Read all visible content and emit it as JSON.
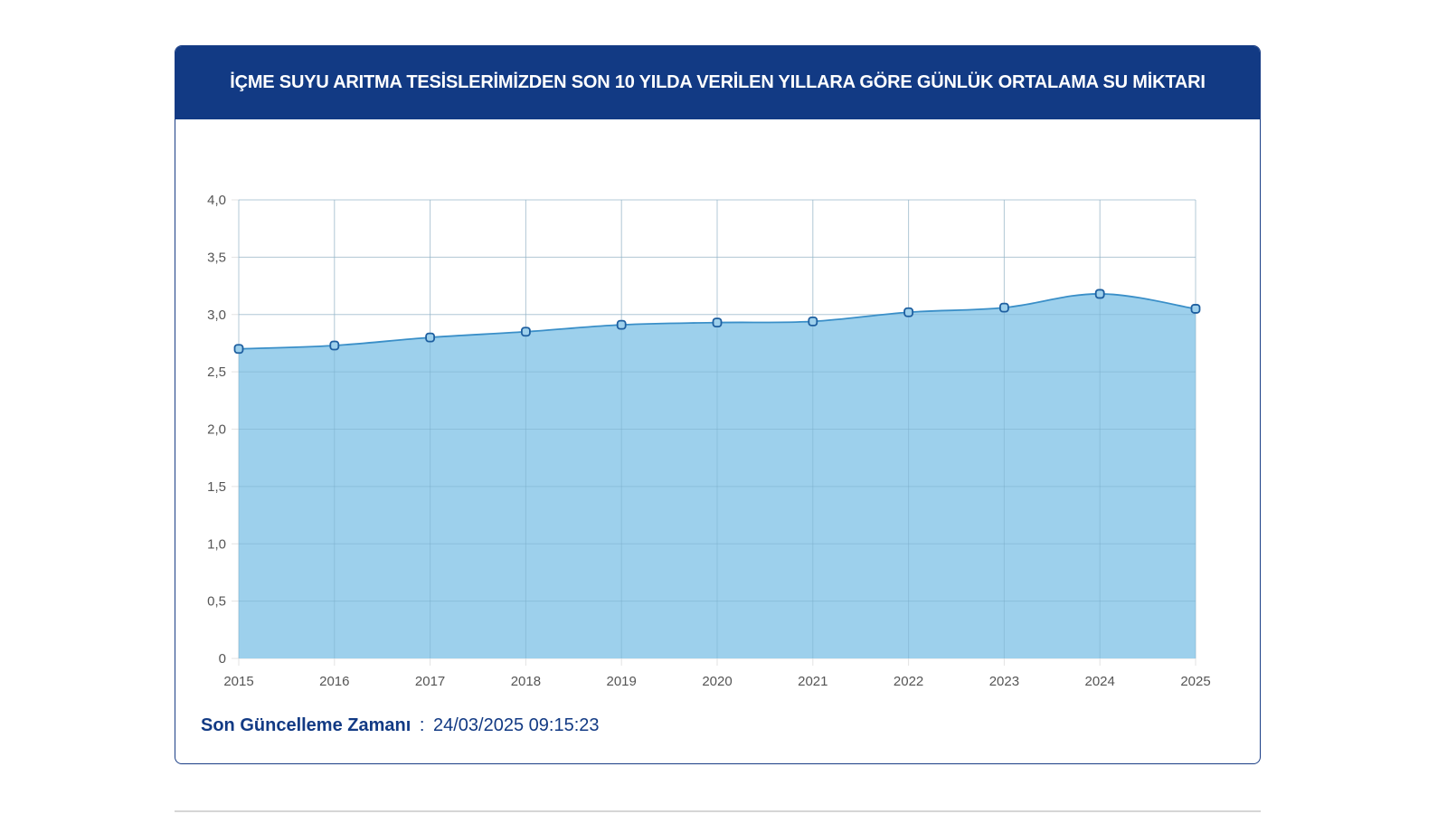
{
  "header": {
    "title": "İÇME SUYU ARITMA TESİSLERİMİZDEN SON 10 YILDA VERİLEN YILLARA GÖRE GÜNLÜK ORTALAMA SU MİKTARI"
  },
  "footer": {
    "label": "Son Güncelleme Zamanı",
    "separator": ":",
    "timestamp": "24/03/2025 09:15:23"
  },
  "colors": {
    "header_bg": "#123a84",
    "area_fill": "#9dd0ec",
    "line": "#3a8fc8",
    "point_stroke": "#1e5fa0"
  },
  "chart_data": {
    "type": "area",
    "x": [
      "2015",
      "2016",
      "2017",
      "2018",
      "2019",
      "2020",
      "2021",
      "2022",
      "2023",
      "2024",
      "2025"
    ],
    "values": [
      2.7,
      2.73,
      2.8,
      2.85,
      2.91,
      2.93,
      2.94,
      3.02,
      3.06,
      3.18,
      3.05
    ],
    "ylim": [
      0,
      4.0
    ],
    "y_ticks": [
      "0",
      "0,5",
      "1,0",
      "1,5",
      "2,0",
      "2,5",
      "3,0",
      "3,5",
      "4,0"
    ],
    "grid": true,
    "legend": "none"
  }
}
